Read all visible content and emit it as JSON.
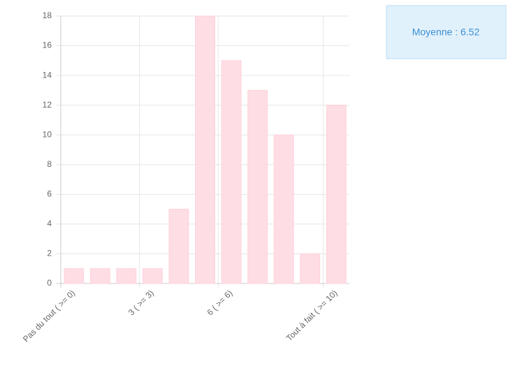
{
  "chart_data": {
    "type": "bar",
    "categories": [
      "Pas du tout ( >= 0)",
      null,
      null,
      "3 ( >= 3)",
      null,
      null,
      "6 ( >= 6)",
      null,
      null,
      null,
      "Tout à fait ( >= 10)"
    ],
    "values": [
      1,
      1,
      1,
      1,
      5,
      18,
      15,
      13,
      10,
      2,
      12
    ],
    "color": "#ffdde4",
    "ylim": [
      0,
      18
    ],
    "yticks": [
      0,
      2,
      4,
      6,
      8,
      10,
      12,
      14,
      16,
      18
    ],
    "grid": true,
    "annotation": "Moyenne : 6.52"
  }
}
